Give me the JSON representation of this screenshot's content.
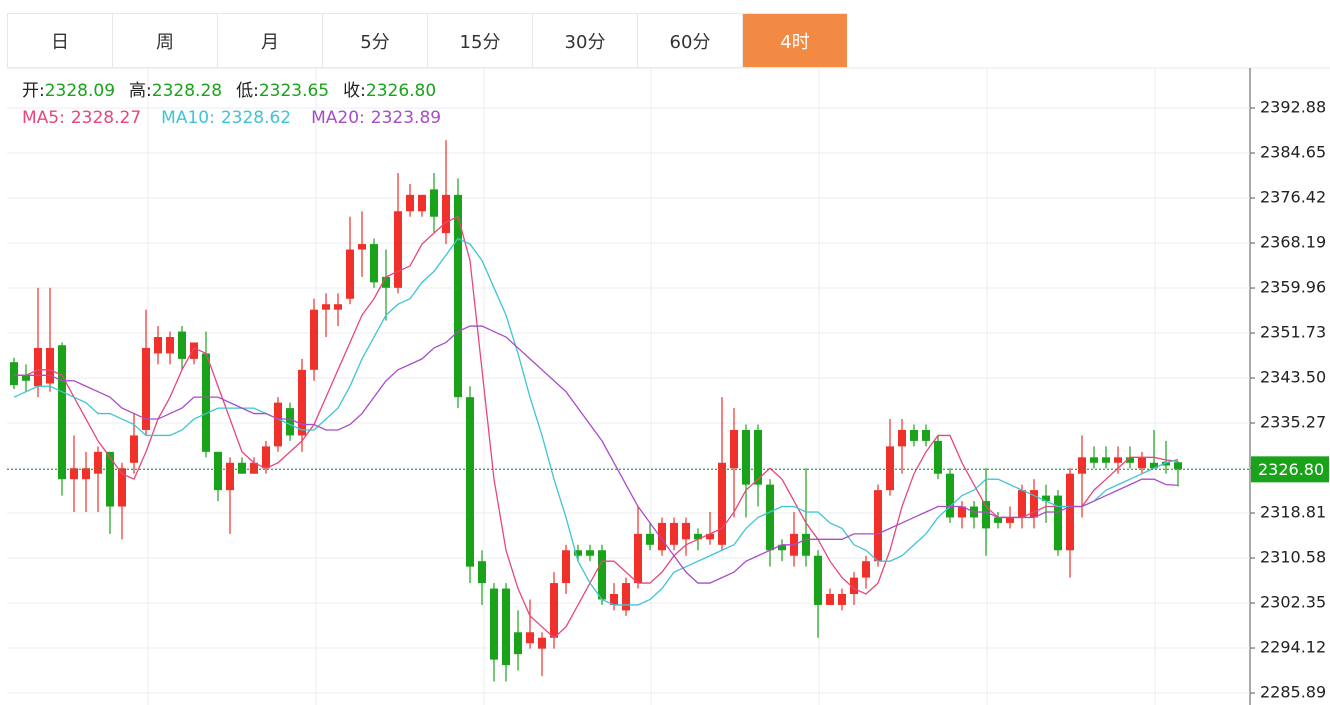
{
  "chart_data": {
    "type": "candlestick",
    "tabs": [
      "日",
      "周",
      "月",
      "5分",
      "15分",
      "30分",
      "60分",
      "4时"
    ],
    "active_tab": 7,
    "info": [
      {
        "label": "开:",
        "value": "2328.09"
      },
      {
        "label": "高:",
        "value": "2328.28"
      },
      {
        "label": "低:",
        "value": "2323.65"
      },
      {
        "label": "收:",
        "value": "2326.80"
      }
    ],
    "up_color": "#f0302a",
    "down_color": "#1aa31a",
    "ylim": [
      2283.7,
      2400.2
    ],
    "yticks": [
      2285.89,
      2294.12,
      2302.35,
      2310.58,
      2318.81,
      2327.04,
      2335.27,
      {
        "value": 2343.5,
        "label": "2343.50"
      },
      2351.73,
      2359.96,
      2368.19,
      2376.42,
      2384.65,
      2392.88
    ],
    "grid": true,
    "last_price": {
      "value": 2326.8,
      "label": "2326.80"
    },
    "ohlc": [
      [
        2346.4,
        2347.2,
        2341.5,
        2342.2
      ],
      [
        2344,
        2346,
        2341,
        2343
      ],
      [
        2342,
        2360,
        2340,
        2349
      ],
      [
        2342.5,
        2360,
        2341,
        2349
      ],
      [
        2349.5,
        2350,
        2322,
        2325
      ],
      [
        2325,
        2333,
        2319,
        2327
      ],
      [
        2325,
        2330,
        2319,
        2327
      ],
      [
        2326,
        2331,
        2319,
        2330
      ],
      [
        2330,
        2330,
        2315,
        2320
      ],
      [
        2320,
        2328,
        2314,
        2327
      ],
      [
        2328,
        2337,
        2326,
        2333
      ],
      [
        2334,
        2356,
        2333,
        2349
      ],
      [
        2348,
        2353,
        2346,
        2351
      ],
      [
        2348,
        2352,
        2346,
        2351
      ],
      [
        2352,
        2353,
        2345,
        2347
      ],
      [
        2347,
        2350,
        2346,
        2350
      ],
      [
        2348,
        2352,
        2329,
        2330
      ],
      [
        2330,
        2330,
        2321,
        2323
      ],
      [
        2323,
        2329,
        2315,
        2328
      ],
      [
        2328,
        2329,
        2326,
        2326
      ],
      [
        2326,
        2329,
        2326,
        2328
      ],
      [
        2327,
        2332,
        2326,
        2331
      ],
      [
        2331,
        2340,
        2330,
        2339
      ],
      [
        2338,
        2339,
        2332,
        2333
      ],
      [
        2333,
        2347,
        2330,
        2345
      ],
      [
        2345,
        2358,
        2343,
        2356
      ],
      [
        2356,
        2359,
        2351,
        2357
      ],
      [
        2356,
        2359,
        2353,
        2357
      ],
      [
        2358,
        2373,
        2357,
        2367
      ],
      [
        2367,
        2374,
        2362,
        2368
      ],
      [
        2368,
        2369,
        2360,
        2361
      ],
      [
        2362,
        2367,
        2354,
        2360
      ],
      [
        2360,
        2381,
        2359,
        2374
      ],
      [
        2374,
        2379,
        2373,
        2377
      ],
      [
        2374,
        2377,
        2373,
        2377
      ],
      [
        2378,
        2381,
        2370,
        2373
      ],
      [
        2370,
        2387,
        2368,
        2377
      ],
      [
        2377,
        2380,
        2338,
        2340
      ],
      [
        2340,
        2342,
        2306,
        2309
      ],
      [
        2310,
        2312,
        2302,
        2306
      ],
      [
        2305,
        2306,
        2288,
        2292
      ],
      [
        2305,
        2306,
        2288,
        2291
      ],
      [
        2297,
        2301,
        2290,
        2293
      ],
      [
        2295,
        2303,
        2294,
        2297
      ],
      [
        2294,
        2297,
        2289,
        2296
      ],
      [
        2296,
        2308,
        2294,
        2306
      ],
      [
        2306,
        2313,
        2304,
        2312
      ],
      [
        2312,
        2313,
        2310,
        2311
      ],
      [
        2312,
        2313,
        2310,
        2311
      ],
      [
        2312,
        2313,
        2302,
        2303
      ],
      [
        2302,
        2306,
        2301,
        2304
      ],
      [
        2301,
        2307,
        2300,
        2306
      ],
      [
        2306,
        2320,
        2305,
        2315
      ],
      [
        2315,
        2317,
        2312,
        2313
      ],
      [
        2312,
        2318,
        2311,
        2317
      ],
      [
        2313,
        2318,
        2312,
        2317
      ],
      [
        2314,
        2318,
        2311,
        2317
      ],
      [
        2315,
        2316,
        2312,
        2314
      ],
      [
        2314,
        2319,
        2313,
        2315
      ],
      [
        2313,
        2340,
        2312,
        2328
      ],
      [
        2327,
        2338,
        2318,
        2334
      ],
      [
        2334,
        2335,
        2318,
        2324
      ],
      [
        2334,
        2335,
        2320,
        2324
      ],
      [
        2324,
        2325,
        2309,
        2312
      ],
      [
        2313,
        2314,
        2310,
        2312
      ],
      [
        2311,
        2319,
        2309,
        2315
      ],
      [
        2315,
        2327,
        2309,
        2311
      ],
      [
        2311,
        2312,
        2296,
        2302
      ],
      [
        2302,
        2305,
        2302,
        2304
      ],
      [
        2302,
        2305,
        2301,
        2304
      ],
      [
        2304,
        2308,
        2302,
        2307
      ],
      [
        2307,
        2311,
        2305,
        2310
      ],
      [
        2310,
        2324,
        2309,
        2323
      ],
      [
        2323,
        2336,
        2322,
        2331
      ],
      [
        2331,
        2336,
        2326,
        2334
      ],
      [
        2334,
        2335,
        2331,
        2332
      ],
      [
        2334,
        2335,
        2331,
        2332
      ],
      [
        2332,
        2333,
        2325,
        2326
      ],
      [
        2326,
        2327,
        2317,
        2318
      ],
      [
        2318,
        2321,
        2316,
        2320
      ],
      [
        2320,
        2321,
        2316,
        2318
      ],
      [
        2321,
        2327,
        2311,
        2316
      ],
      [
        2318,
        2319,
        2316,
        2317
      ],
      [
        2317,
        2320,
        2316,
        2318
      ],
      [
        2318,
        2324,
        2316,
        2323
      ],
      [
        2318,
        2325,
        2316,
        2323
      ],
      [
        2322,
        2324,
        2317,
        2321
      ],
      [
        2322,
        2323,
        2311,
        2312
      ],
      [
        2312,
        2327,
        2307,
        2326
      ],
      [
        2326,
        2333,
        2318,
        2329
      ],
      [
        2329,
        2331,
        2327,
        2328
      ],
      [
        2329,
        2331,
        2327,
        2328
      ],
      [
        2328,
        2331,
        2326,
        2329
      ],
      [
        2329,
        2331,
        2327,
        2328
      ],
      [
        2327,
        2330,
        2326,
        2329
      ],
      [
        2328,
        2334,
        2327,
        2327
      ],
      [
        2328.2,
        2332,
        2326,
        2327.5
      ],
      [
        2328.09,
        2328.28,
        2323.65,
        2326.8
      ]
    ],
    "ma": [
      {
        "name": "MA5:",
        "value_label": "2328.27",
        "color": "#e8467c",
        "values": [
          2344,
          2344,
          2345,
          2345,
          2344,
          2340,
          2336,
          2332,
          2329,
          2326,
          2325,
          2330,
          2336,
          2340,
          2345,
          2349,
          2348,
          2342,
          2336,
          2330,
          2328,
          2327,
          2328,
          2330,
          2332,
          2335,
          2340,
          2345,
          2350,
          2355,
          2358,
          2362,
          2363,
          2364,
          2368,
          2370,
          2372,
          2373,
          2365,
          2345,
          2325,
          2312,
          2305,
          2300,
          2298,
          2296,
          2298,
          2302,
          2306,
          2310,
          2310,
          2308,
          2306,
          2306,
          2308,
          2311,
          2313,
          2314,
          2315,
          2316,
          2319,
          2323,
          2325,
          2327,
          2325,
          2321,
          2317,
          2314,
          2310,
          2307,
          2305,
          2304,
          2306,
          2312,
          2320,
          2326,
          2330,
          2333,
          2333,
          2328,
          2324,
          2320,
          2318,
          2318,
          2318,
          2319,
          2320,
          2320,
          2320,
          2320,
          2323,
          2325,
          2327,
          2329,
          2329,
          2329,
          2328.5,
          2328.27
        ]
      },
      {
        "name": "MA10:",
        "value_label": "2328.62",
        "color": "#3fc4d6",
        "values": [
          2340,
          2341,
          2342,
          2342,
          2341,
          2340,
          2339,
          2337,
          2337,
          2336,
          2335,
          2333,
          2333,
          2333,
          2334,
          2336,
          2337,
          2338,
          2338,
          2338,
          2338,
          2337,
          2336,
          2335,
          2334,
          2334,
          2336,
          2338,
          2342,
          2347,
          2351,
          2355,
          2357,
          2358,
          2361,
          2363,
          2366,
          2369,
          2368,
          2365,
          2360,
          2355,
          2348,
          2340,
          2333,
          2325,
          2318,
          2310,
          2306,
          2303,
          2302,
          2302,
          2302,
          2303,
          2305,
          2308,
          2309,
          2310,
          2311,
          2312,
          2313,
          2316,
          2318,
          2319,
          2320,
          2320,
          2319,
          2319,
          2317,
          2316,
          2313,
          2312,
          2310,
          2310,
          2311,
          2313,
          2315,
          2318,
          2320,
          2322,
          2323,
          2325,
          2325,
          2324,
          2323,
          2322,
          2321,
          2320,
          2320,
          2320,
          2321,
          2323,
          2324,
          2325,
          2326,
          2327,
          2328,
          2328.62
        ]
      },
      {
        "name": "MA20:",
        "value_label": "2323.89",
        "color": "#a84cc8",
        "values": [
          2344,
          2344,
          2344,
          2344,
          2343,
          2343,
          2342,
          2341,
          2340,
          2338,
          2337,
          2336,
          2336,
          2337,
          2338,
          2340,
          2340,
          2340,
          2339,
          2338,
          2337,
          2337,
          2336,
          2336,
          2335,
          2335,
          2334,
          2334,
          2335,
          2337,
          2340,
          2343,
          2345,
          2346,
          2347,
          2349,
          2350,
          2352,
          2353,
          2353,
          2352,
          2351,
          2349,
          2347,
          2345,
          2343,
          2341,
          2338,
          2335,
          2332,
          2328,
          2324,
          2320,
          2317,
          2314,
          2311,
          2308,
          2306,
          2306,
          2307,
          2308,
          2310,
          2311,
          2312,
          2313,
          2313,
          2314,
          2314,
          2314,
          2314,
          2315,
          2315,
          2315,
          2316,
          2317,
          2318,
          2319,
          2320,
          2320,
          2320,
          2319,
          2319,
          2318,
          2318,
          2318,
          2318,
          2319,
          2319,
          2320,
          2320,
          2321,
          2322,
          2323,
          2324,
          2325,
          2325,
          2324,
          2323.89
        ]
      }
    ]
  }
}
